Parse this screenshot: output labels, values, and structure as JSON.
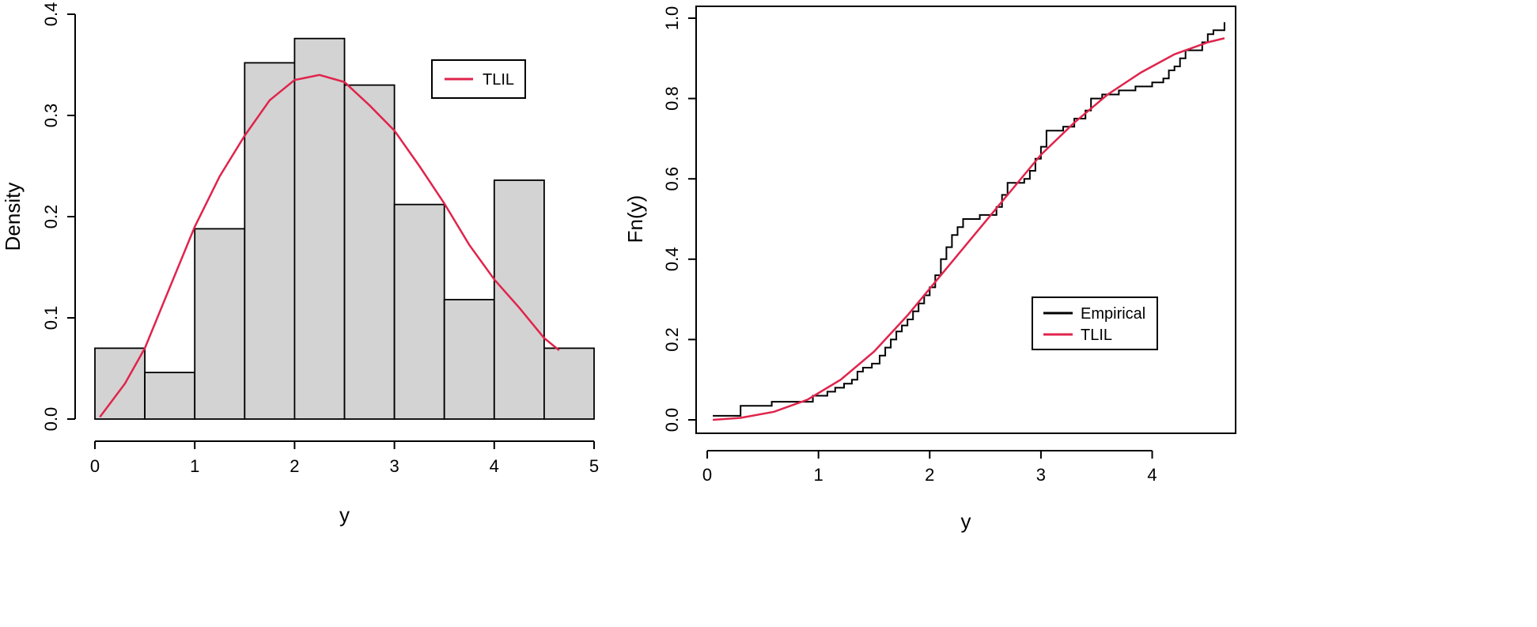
{
  "chart_data": [
    {
      "type": "histogram",
      "xlabel": "y",
      "ylabel": "Density",
      "xlim": [
        0,
        5
      ],
      "ylim": [
        0,
        0.4
      ],
      "xticks": [
        "0",
        "1",
        "2",
        "3",
        "4",
        "5"
      ],
      "yticks": [
        "0.0",
        "0.1",
        "0.2",
        "0.3",
        "0.4"
      ],
      "bin_edges": [
        0,
        0.5,
        1,
        1.5,
        2,
        2.5,
        3,
        3.5,
        4,
        4.5,
        5
      ],
      "values": [
        0.07,
        0.046,
        0.188,
        0.352,
        0.376,
        0.33,
        0.212,
        0.118,
        0.236,
        0.07
      ],
      "bar_fill": "#d3d3d3",
      "legend_position": "top-right",
      "series": [
        {
          "name": "TLIL",
          "color": "#e0244c",
          "x": [
            0.05,
            0.3,
            0.5,
            0.75,
            1.0,
            1.25,
            1.5,
            1.75,
            2.0,
            2.25,
            2.5,
            2.75,
            3.0,
            3.25,
            3.5,
            3.75,
            4.0,
            4.25,
            4.5,
            4.65
          ],
          "y": [
            0.002,
            0.035,
            0.07,
            0.13,
            0.19,
            0.24,
            0.28,
            0.315,
            0.335,
            0.34,
            0.333,
            0.31,
            0.285,
            0.25,
            0.213,
            0.172,
            0.138,
            0.11,
            0.08,
            0.068
          ]
        }
      ]
    },
    {
      "type": "line",
      "xlabel": "y",
      "ylabel": "Fn(y)",
      "xlim": [
        -0.1,
        4.75
      ],
      "ylim": [
        0,
        1
      ],
      "xticks": [
        "0",
        "1",
        "2",
        "3",
        "4"
      ],
      "yticks": [
        "0.0",
        "0.2",
        "0.4",
        "0.6",
        "0.8",
        "1.0"
      ],
      "legend_position": "bottom-right",
      "series": [
        {
          "name": "Empirical",
          "color": "#000000",
          "step": true,
          "x": [
            0.05,
            0.3,
            0.58,
            0.95,
            1.08,
            1.15,
            1.23,
            1.3,
            1.35,
            1.4,
            1.48,
            1.55,
            1.6,
            1.65,
            1.7,
            1.75,
            1.8,
            1.85,
            1.9,
            1.95,
            2.0,
            2.05,
            2.1,
            2.15,
            2.2,
            2.25,
            2.3,
            2.45,
            2.6,
            2.65,
            2.7,
            2.85,
            2.9,
            2.95,
            3.0,
            3.05,
            3.2,
            3.3,
            3.4,
            3.45,
            3.55,
            3.7,
            3.85,
            4.0,
            4.1,
            4.15,
            4.2,
            4.25,
            4.3,
            4.45,
            4.5,
            4.55,
            4.65
          ],
          "y": [
            0.01,
            0.035,
            0.045,
            0.06,
            0.07,
            0.08,
            0.09,
            0.1,
            0.12,
            0.13,
            0.14,
            0.16,
            0.18,
            0.2,
            0.22,
            0.235,
            0.25,
            0.27,
            0.29,
            0.31,
            0.33,
            0.36,
            0.4,
            0.43,
            0.46,
            0.48,
            0.5,
            0.51,
            0.53,
            0.56,
            0.59,
            0.6,
            0.62,
            0.65,
            0.68,
            0.72,
            0.73,
            0.75,
            0.77,
            0.8,
            0.81,
            0.82,
            0.83,
            0.84,
            0.85,
            0.87,
            0.88,
            0.9,
            0.92,
            0.94,
            0.96,
            0.97,
            0.99
          ]
        },
        {
          "name": "TLIL",
          "color": "#e0244c",
          "step": false,
          "x": [
            0.05,
            0.3,
            0.6,
            0.9,
            1.2,
            1.5,
            1.8,
            2.1,
            2.4,
            2.7,
            3.0,
            3.3,
            3.6,
            3.9,
            4.2,
            4.5,
            4.65
          ],
          "y": [
            0.0,
            0.005,
            0.02,
            0.05,
            0.1,
            0.17,
            0.26,
            0.36,
            0.46,
            0.56,
            0.66,
            0.74,
            0.81,
            0.865,
            0.91,
            0.94,
            0.95
          ]
        }
      ]
    }
  ]
}
